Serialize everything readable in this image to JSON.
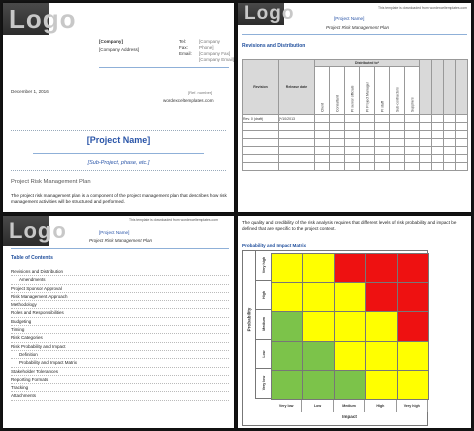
{
  "page1": {
    "logo": "Logo",
    "company": "[Company]",
    "address": "[Company Address]",
    "contact_labels": [
      "Tel:",
      "Fax:",
      "Email:"
    ],
    "contact_values": [
      "[Company Phone]",
      "[Company Fax]",
      "[Company Email]"
    ],
    "ref_number": "[Ref. number]",
    "website": "wordexceltemplates.com",
    "date": "December 1, 2016",
    "project_name": "[Project Name]",
    "sub_project": "[Sub-Project, phase, etc.]",
    "doc_title": "Project Risk Management Plan",
    "body": "The project risk management plan is a component of the project management plan that describes how risk management activities will be structured and performed."
  },
  "page2": {
    "logo": "Logo",
    "note": "This template is downloaded from wordexceltemplates.com",
    "project_name": "[Project Name]",
    "plan_title": "Project Risk Management Plan",
    "heading": "Revisions and Distribution",
    "table": {
      "col_revision": "Revision",
      "col_release_date": "Release date",
      "col_distributed": "Distributed to*",
      "distribution": [
        "Client",
        "Consultant",
        "PI senior officials",
        "PI Project Manager",
        "PI staff",
        "Sub-contractors",
        "Suppliers"
      ],
      "rows": [
        {
          "revision": "Rev. 0 (draft)",
          "date": "[*/10/2013"
        },
        {
          "revision": "",
          "date": ""
        },
        {
          "revision": "",
          "date": ""
        },
        {
          "revision": "",
          "date": ""
        },
        {
          "revision": "",
          "date": ""
        },
        {
          "revision": "",
          "date": ""
        },
        {
          "revision": "",
          "date": ""
        }
      ]
    }
  },
  "page3": {
    "logo": "Logo",
    "note": "This template is downloaded from wordexceltemplates.com",
    "project_name": "[Project Name]",
    "plan_title": "Project Risk Management Plan",
    "toc_title": "Table of Contents",
    "toc": [
      {
        "label": "Revisions and Distribution",
        "sub": false
      },
      {
        "label": "Amendments",
        "sub": true
      },
      {
        "label": "Project Sponsor Approval",
        "sub": false
      },
      {
        "label": "Risk Management Approach",
        "sub": false
      },
      {
        "label": "Methodology",
        "sub": false
      },
      {
        "label": "Roles and Responsibilities",
        "sub": false
      },
      {
        "label": "Budgeting",
        "sub": false
      },
      {
        "label": "Timing",
        "sub": false
      },
      {
        "label": "Risk Categories",
        "sub": false
      },
      {
        "label": "Risk Probability and Impact",
        "sub": false
      },
      {
        "label": "Definition",
        "sub": true
      },
      {
        "label": "Probability and Impact Matrix",
        "sub": true
      },
      {
        "label": "Stakeholder Tolerances",
        "sub": false
      },
      {
        "label": "Reporting Formats",
        "sub": false
      },
      {
        "label": "Tracking",
        "sub": false
      },
      {
        "label": "Attachments",
        "sub": false
      }
    ]
  },
  "page4": {
    "intro": "The quality and credibility of the risk analysis requires that different levels of risk probability and impact be defined that are specific to the project context.",
    "heading": "Probability and Impact Matrix",
    "prob_label": "Probability",
    "impact_label": "Impact",
    "rows": [
      "Very high",
      "High",
      "Medium",
      "Low",
      "Very low"
    ],
    "cols": [
      "Very low",
      "Low",
      "Medium",
      "High",
      "Very high"
    ],
    "colors": {
      "green": "#7cc34a",
      "yellow": "#ffff00",
      "red": "#ee1111"
    },
    "matrix": [
      [
        "yellow",
        "yellow",
        "red",
        "red",
        "red"
      ],
      [
        "yellow",
        "yellow",
        "yellow",
        "red",
        "red"
      ],
      [
        "green",
        "yellow",
        "yellow",
        "yellow",
        "red"
      ],
      [
        "green",
        "green",
        "yellow",
        "yellow",
        "yellow"
      ],
      [
        "green",
        "green",
        "green",
        "yellow",
        "yellow"
      ]
    ]
  }
}
